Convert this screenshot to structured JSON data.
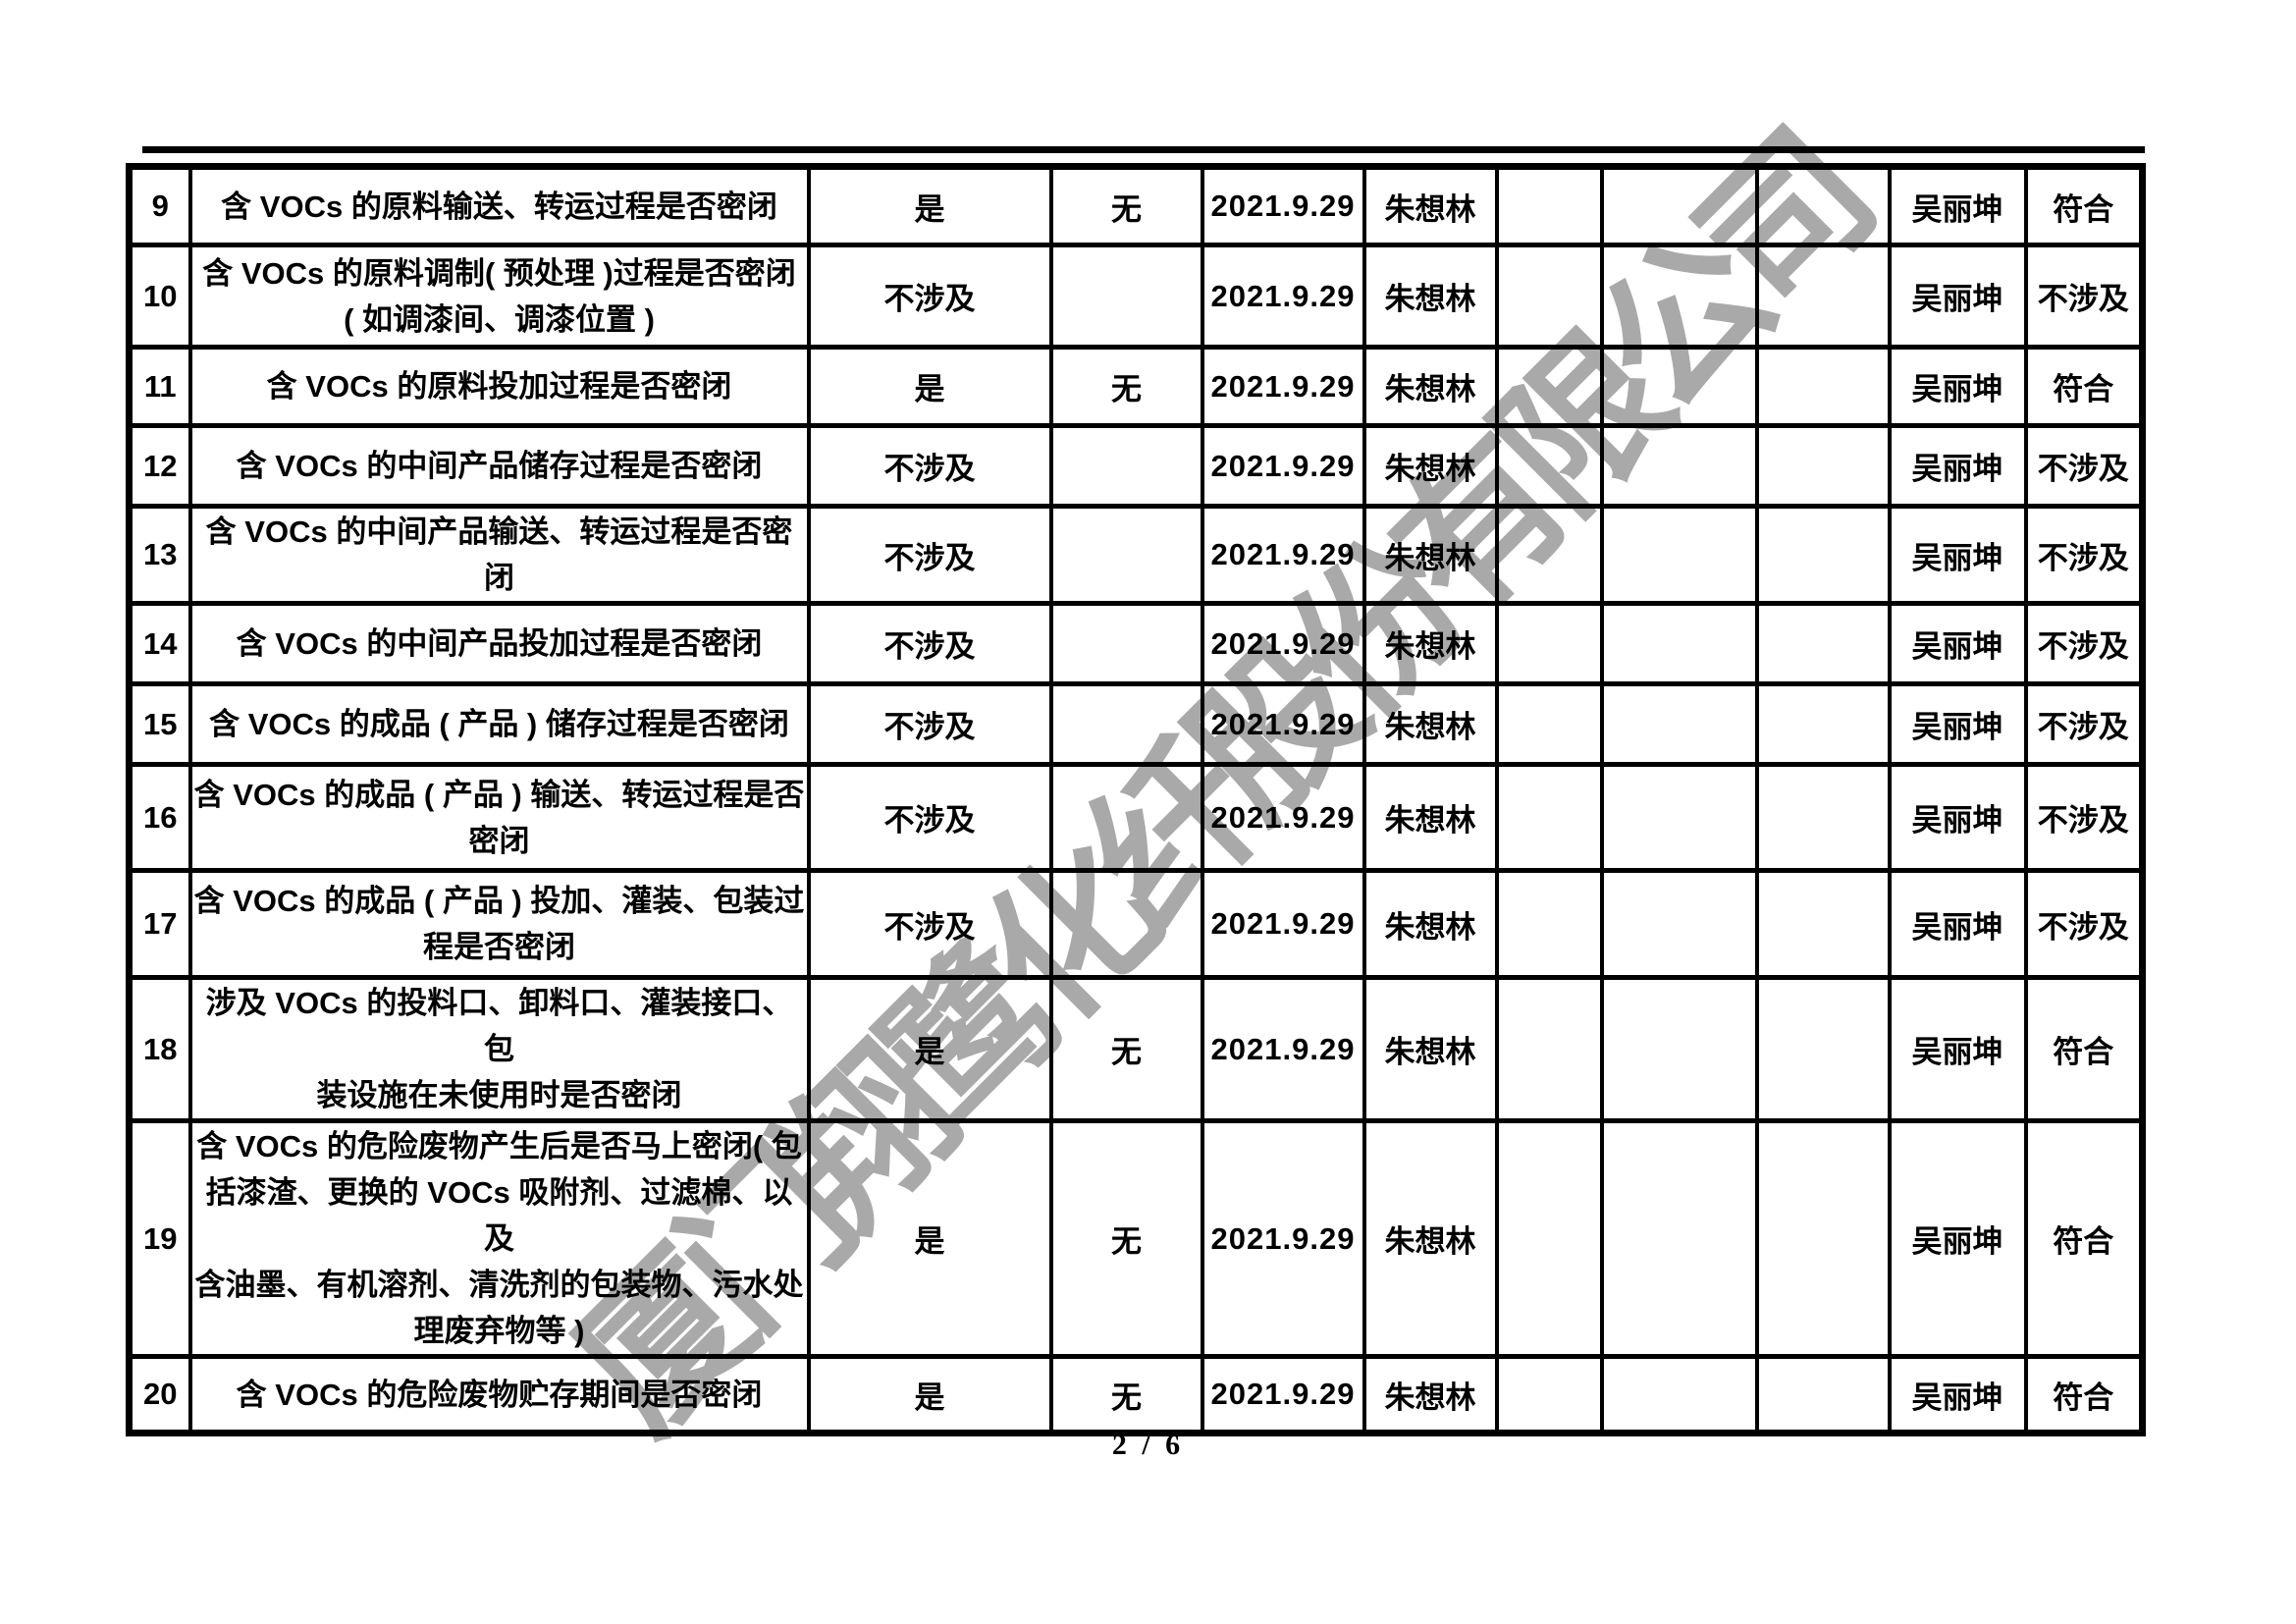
{
  "page": {
    "number_label": "2 / 6",
    "watermark": "厦门翔鹭化纤股份有限公司"
  },
  "colors": {
    "ink": "#000000",
    "watermark": "#a9a9a9",
    "background": "#ffffff"
  },
  "table": {
    "rows": [
      {
        "cells": [
          "9",
          "含 VOCs 的原料输送、转运过程是否密闭",
          "是",
          "无",
          "2021.9.29",
          "朱想林",
          "",
          "",
          "",
          "吴丽坤",
          "符合"
        ]
      },
      {
        "cells": [
          "10",
          "含 VOCs 的原料调制( 预处理 )过程是否密闭\n( 如调漆间、调漆位置 )",
          "不涉及",
          "",
          "2021.9.29",
          "朱想林",
          "",
          "",
          "",
          "吴丽坤",
          "不涉及"
        ]
      },
      {
        "cells": [
          "11",
          "含 VOCs 的原料投加过程是否密闭",
          "是",
          "无",
          "2021.9.29",
          "朱想林",
          "",
          "",
          "",
          "吴丽坤",
          "符合"
        ]
      },
      {
        "cells": [
          "12",
          "含 VOCs 的中间产品储存过程是否密闭",
          "不涉及",
          "",
          "2021.9.29",
          "朱想林",
          "",
          "",
          "",
          "吴丽坤",
          "不涉及"
        ]
      },
      {
        "cells": [
          "13",
          "含 VOCs 的中间产品输送、转运过程是否密闭",
          "不涉及",
          "",
          "2021.9.29",
          "朱想林",
          "",
          "",
          "",
          "吴丽坤",
          "不涉及"
        ]
      },
      {
        "cells": [
          "14",
          "含 VOCs 的中间产品投加过程是否密闭",
          "不涉及",
          "",
          "2021.9.29",
          "朱想林",
          "",
          "",
          "",
          "吴丽坤",
          "不涉及"
        ]
      },
      {
        "cells": [
          "15",
          "含 VOCs 的成品 ( 产品 ) 储存过程是否密闭",
          "不涉及",
          "",
          "2021.9.29",
          "朱想林",
          "",
          "",
          "",
          "吴丽坤",
          "不涉及"
        ]
      },
      {
        "cells": [
          "16",
          "含 VOCs 的成品 ( 产品 ) 输送、转运过程是否\n密闭",
          "不涉及",
          "",
          "2021.9.29",
          "朱想林",
          "",
          "",
          "",
          "吴丽坤",
          "不涉及"
        ]
      },
      {
        "cells": [
          "17",
          "含 VOCs 的成品 ( 产品 ) 投加、灌装、包装过\n程是否密闭",
          "不涉及",
          "",
          "2021.9.29",
          "朱想林",
          "",
          "",
          "",
          "吴丽坤",
          "不涉及"
        ]
      },
      {
        "cells": [
          "18",
          "涉及 VOCs 的投料口、卸料口、灌装接口、包\n装设施在未使用时是否密闭",
          "是",
          "无",
          "2021.9.29",
          "朱想林",
          "",
          "",
          "",
          "吴丽坤",
          "符合"
        ]
      },
      {
        "cells": [
          "19",
          "含 VOCs 的危险废物产生后是否马上密闭( 包\n括漆渣、更换的 VOCs 吸附剂、过滤棉、以及\n含油墨、有机溶剂、清洗剂的包装物、污水处\n理废弃物等 )",
          "是",
          "无",
          "2021.9.29",
          "朱想林",
          "",
          "",
          "",
          "吴丽坤",
          "符合"
        ]
      },
      {
        "cells": [
          "20",
          "含 VOCs 的危险废物贮存期间是否密闭",
          "是",
          "无",
          "2021.9.29",
          "朱想林",
          "",
          "",
          "",
          "吴丽坤",
          "符合"
        ]
      }
    ]
  }
}
